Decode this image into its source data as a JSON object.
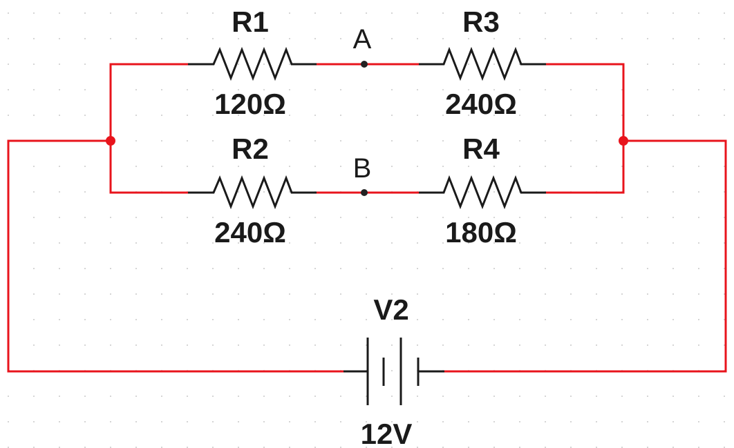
{
  "colors": {
    "wire": "#e8141c",
    "component": "#1a1a1a",
    "junction": "#e8141c",
    "node_dot": "#222222",
    "grid_dot": "#c8c8c8",
    "background": "#ffffff"
  },
  "components": {
    "r1": {
      "name": "R1",
      "value": "120Ω"
    },
    "r2": {
      "name": "R2",
      "value": "240Ω"
    },
    "r3": {
      "name": "R3",
      "value": "240Ω"
    },
    "r4": {
      "name": "R4",
      "value": "180Ω"
    },
    "v2": {
      "name": "V2",
      "value": "12V"
    }
  },
  "nodes": {
    "a": "A",
    "b": "B"
  }
}
